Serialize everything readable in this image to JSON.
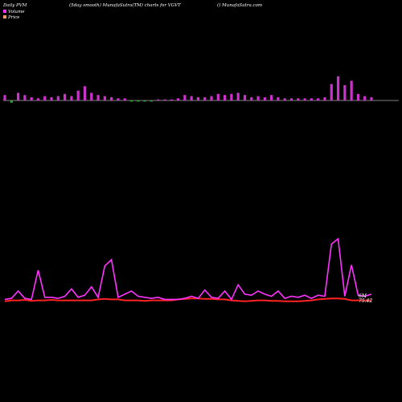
{
  "header": {
    "left": "Daily PVM",
    "center": "(5day smooth) MunafaSutra(TM) charts for VGVT",
    "right": "() MunafaSutra.com"
  },
  "legend": {
    "volume_label": "Volume",
    "price_label": "Price",
    "volume_color": "#ff33ff",
    "price_color": "#ff9966"
  },
  "chart_data": {
    "type": "bar",
    "title": "Daily PVM (5day smooth) MunafaSutra(TM) charts for VGVT",
    "volume": {
      "bar_color": "#cc33cc",
      "down_color": "#33aa33",
      "values": [
        5,
        -2,
        7,
        5,
        3,
        2,
        4,
        3,
        4,
        6,
        4,
        9,
        13,
        7,
        5,
        4,
        3,
        2,
        2,
        -1,
        -1,
        -1,
        -1,
        1,
        1,
        1,
        2,
        5,
        4,
        3,
        3,
        4,
        6,
        5,
        6,
        7,
        5,
        3,
        4,
        3,
        5,
        3,
        2,
        2,
        2,
        2,
        2,
        2,
        3,
        15,
        22,
        14,
        18,
        6,
        4,
        3
      ]
    },
    "pvm_line": {
      "color": "#ff33ff",
      "values": [
        2,
        3,
        10,
        3,
        2,
        30,
        4,
        4,
        3,
        5,
        12,
        4,
        6,
        14,
        4,
        34,
        40,
        4,
        7,
        10,
        5,
        4,
        3,
        4,
        2,
        2,
        2,
        3,
        5,
        3,
        11,
        4,
        3,
        10,
        2,
        16,
        7,
        6,
        10,
        7,
        5,
        10,
        3,
        5,
        4,
        6,
        3,
        6,
        5,
        55,
        60,
        5,
        35,
        6,
        5,
        7
      ]
    },
    "price_line": {
      "color": "#ff2222",
      "values": [
        1,
        2,
        2,
        2.5,
        1.5,
        2,
        2,
        2.5,
        2,
        2,
        2,
        2,
        2,
        2,
        3,
        3.5,
        3,
        3,
        2,
        2,
        2,
        1.5,
        2,
        2,
        2,
        2,
        3,
        3.5,
        4,
        4,
        3.5,
        3.5,
        3,
        3,
        2,
        1.5,
        1,
        1.5,
        2,
        2,
        1.5,
        1.5,
        1,
        1,
        1,
        1.5,
        2,
        3,
        3.5,
        4,
        4,
        3.5,
        2,
        2,
        2,
        2
      ]
    },
    "last_labels": [
      "6M",
      "75.42"
    ]
  }
}
